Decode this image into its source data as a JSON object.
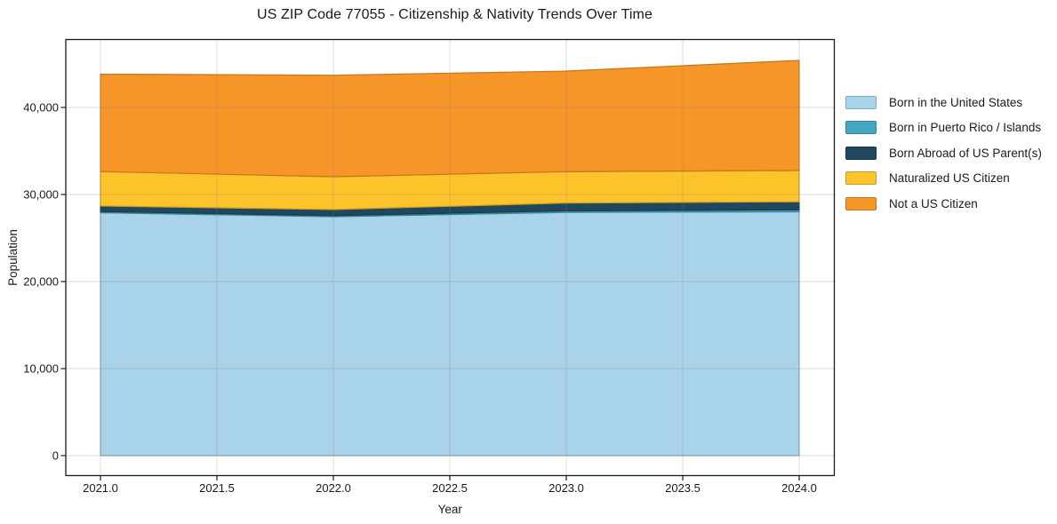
{
  "chart_data": {
    "type": "area",
    "stacked": true,
    "title": "US ZIP Code 77055 - Citizenship & Nativity Trends Over Time",
    "xlabel": "Year",
    "ylabel": "Population",
    "x": [
      2021,
      2022,
      2023,
      2024
    ],
    "series": [
      {
        "name": "Born in the United States",
        "color": "#a8d3e8",
        "values": [
          27900,
          27450,
          27950,
          28010
        ]
      },
      {
        "name": "Born in Puerto Rico / Islands",
        "color": "#45a6c1",
        "values": [
          140,
          120,
          170,
          230
        ]
      },
      {
        "name": "Born Abroad of US Parent(s)",
        "color": "#1f485e",
        "values": [
          640,
          700,
          900,
          920
        ]
      },
      {
        "name": "Naturalized US Citizen",
        "color": "#fcc32b",
        "values": [
          3960,
          3770,
          3610,
          3600
        ]
      },
      {
        "name": "Not a US Citizen",
        "color": "#f69528",
        "values": [
          11190,
          11660,
          11550,
          12650
        ]
      }
    ],
    "totals": [
      43830,
      43700,
      44180,
      45410
    ],
    "x_ticks": [
      2021.0,
      2021.5,
      2022.0,
      2022.5,
      2023.0,
      2023.5,
      2024.0
    ],
    "y_ticks": [
      0,
      10000,
      20000,
      30000,
      40000
    ],
    "xlim": [
      2020.85,
      2024.15
    ],
    "ylim": [
      -2400,
      47900
    ],
    "grid": true,
    "legend_position": "right-outside"
  },
  "colors": {
    "background": "#ffffff",
    "spine": "#1a1a1a",
    "gridline": "rgba(128,128,128,0.3)",
    "text": "#1a1a1a"
  }
}
